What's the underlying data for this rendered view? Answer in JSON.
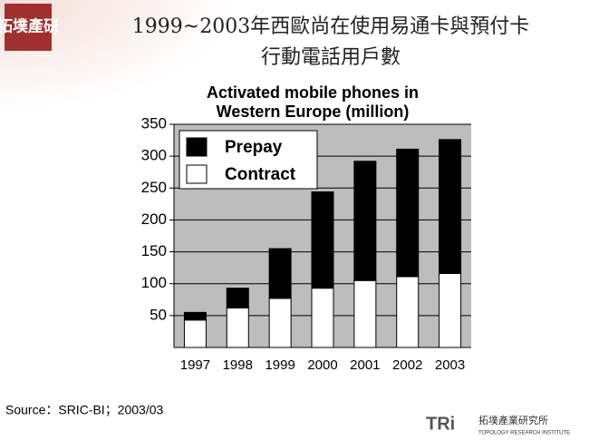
{
  "slide": {
    "heading": [
      "1999~2003年西歐尚在使用易通卡與預付卡",
      "行動電話用戶數"
    ],
    "logo": "拓墣產研",
    "source": "Source：SRIC-BI；2003/03",
    "footer_logo": {
      "mark": "TRi",
      "name": "拓墣產業研究所",
      "name_en": "TOPOLOGY RESEARCH INSTITUTE"
    }
  },
  "chart_data": {
    "type": "bar",
    "stacked": true,
    "title": [
      "Activated mobile phones in",
      "Western Europe (million)"
    ],
    "categories": [
      "1997",
      "1998",
      "1999",
      "2000",
      "2001",
      "2002",
      "2003"
    ],
    "series": [
      {
        "name": "Prepay",
        "color": "#000000",
        "values": [
          12,
          31,
          78,
          151,
          187,
          200,
          210
        ]
      },
      {
        "name": "Contract",
        "color": "#ffffff",
        "values": [
          43,
          62,
          77,
          93,
          105,
          111,
          116
        ]
      }
    ],
    "ylim": [
      0,
      350
    ],
    "yticks": [
      50,
      100,
      150,
      200,
      250,
      300,
      350
    ],
    "grid": true,
    "legend": "upper left",
    "plot_background": "#bdbdbd"
  }
}
